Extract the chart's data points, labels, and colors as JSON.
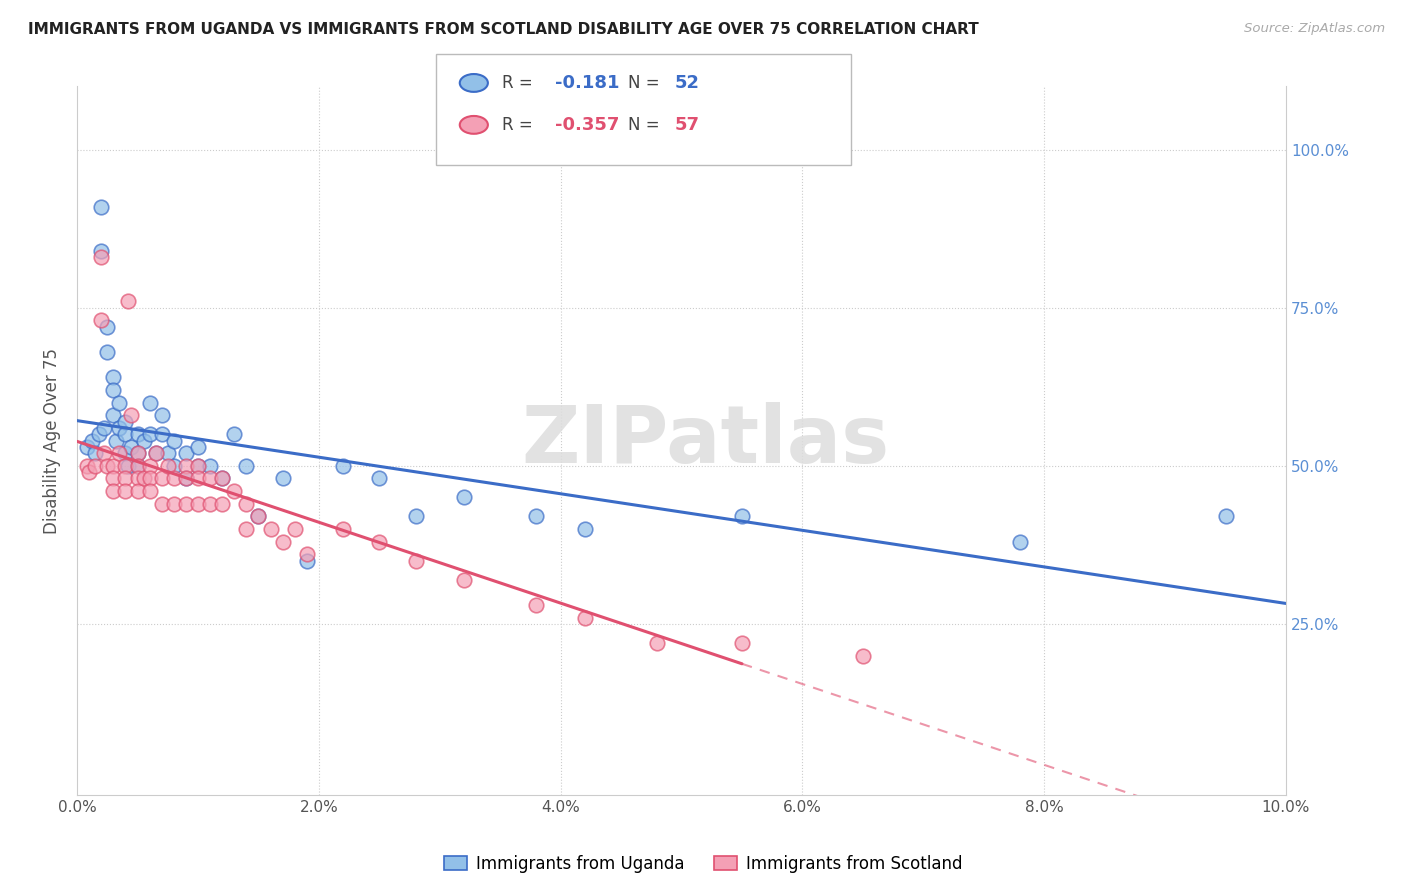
{
  "title": "IMMIGRANTS FROM UGANDA VS IMMIGRANTS FROM SCOTLAND DISABILITY AGE OVER 75 CORRELATION CHART",
  "source": "Source: ZipAtlas.com",
  "ylabel": "Disability Age Over 75",
  "xlim": [
    0.0,
    0.1
  ],
  "ylim": [
    -0.02,
    1.1
  ],
  "legend_r_uganda": "-0.181",
  "legend_n_uganda": "52",
  "legend_r_scotland": "-0.357",
  "legend_n_scotland": "57",
  "legend_label_uganda": "Immigrants from Uganda",
  "legend_label_scotland": "Immigrants from Scotland",
  "color_uganda": "#92C0E8",
  "color_scotland": "#F4A0B5",
  "color_trend_uganda": "#3B6CC7",
  "color_trend_scotland": "#E05070",
  "watermark": "ZIPatlas",
  "uganda_x": [
    0.0008,
    0.0012,
    0.0015,
    0.0018,
    0.002,
    0.002,
    0.0022,
    0.0025,
    0.0025,
    0.003,
    0.003,
    0.003,
    0.0032,
    0.0035,
    0.0035,
    0.004,
    0.004,
    0.004,
    0.0042,
    0.0045,
    0.005,
    0.005,
    0.005,
    0.0055,
    0.006,
    0.006,
    0.0065,
    0.007,
    0.007,
    0.0075,
    0.008,
    0.008,
    0.009,
    0.009,
    0.01,
    0.01,
    0.011,
    0.012,
    0.013,
    0.014,
    0.015,
    0.017,
    0.019,
    0.022,
    0.025,
    0.028,
    0.032,
    0.038,
    0.042,
    0.055,
    0.078,
    0.095
  ],
  "uganda_y": [
    0.53,
    0.54,
    0.52,
    0.55,
    0.91,
    0.84,
    0.56,
    0.72,
    0.68,
    0.64,
    0.62,
    0.58,
    0.54,
    0.6,
    0.56,
    0.57,
    0.55,
    0.52,
    0.5,
    0.53,
    0.55,
    0.52,
    0.5,
    0.54,
    0.6,
    0.55,
    0.52,
    0.58,
    0.55,
    0.52,
    0.54,
    0.5,
    0.52,
    0.48,
    0.53,
    0.5,
    0.5,
    0.48,
    0.55,
    0.5,
    0.42,
    0.48,
    0.35,
    0.5,
    0.48,
    0.42,
    0.45,
    0.42,
    0.4,
    0.42,
    0.38,
    0.42
  ],
  "scotland_x": [
    0.0008,
    0.001,
    0.0015,
    0.002,
    0.002,
    0.0022,
    0.0025,
    0.003,
    0.003,
    0.003,
    0.0035,
    0.004,
    0.004,
    0.004,
    0.0042,
    0.0045,
    0.005,
    0.005,
    0.005,
    0.005,
    0.0055,
    0.006,
    0.006,
    0.006,
    0.0065,
    0.007,
    0.007,
    0.0075,
    0.008,
    0.008,
    0.009,
    0.009,
    0.009,
    0.01,
    0.01,
    0.01,
    0.011,
    0.011,
    0.012,
    0.012,
    0.013,
    0.014,
    0.014,
    0.015,
    0.016,
    0.017,
    0.018,
    0.019,
    0.022,
    0.025,
    0.028,
    0.032,
    0.038,
    0.042,
    0.048,
    0.055,
    0.065
  ],
  "scotland_y": [
    0.5,
    0.49,
    0.5,
    0.83,
    0.73,
    0.52,
    0.5,
    0.5,
    0.48,
    0.46,
    0.52,
    0.5,
    0.48,
    0.46,
    0.76,
    0.58,
    0.52,
    0.5,
    0.48,
    0.46,
    0.48,
    0.5,
    0.48,
    0.46,
    0.52,
    0.48,
    0.44,
    0.5,
    0.48,
    0.44,
    0.5,
    0.48,
    0.44,
    0.5,
    0.48,
    0.44,
    0.48,
    0.44,
    0.48,
    0.44,
    0.46,
    0.44,
    0.4,
    0.42,
    0.4,
    0.38,
    0.4,
    0.36,
    0.4,
    0.38,
    0.35,
    0.32,
    0.28,
    0.26,
    0.22,
    0.22,
    0.2
  ]
}
